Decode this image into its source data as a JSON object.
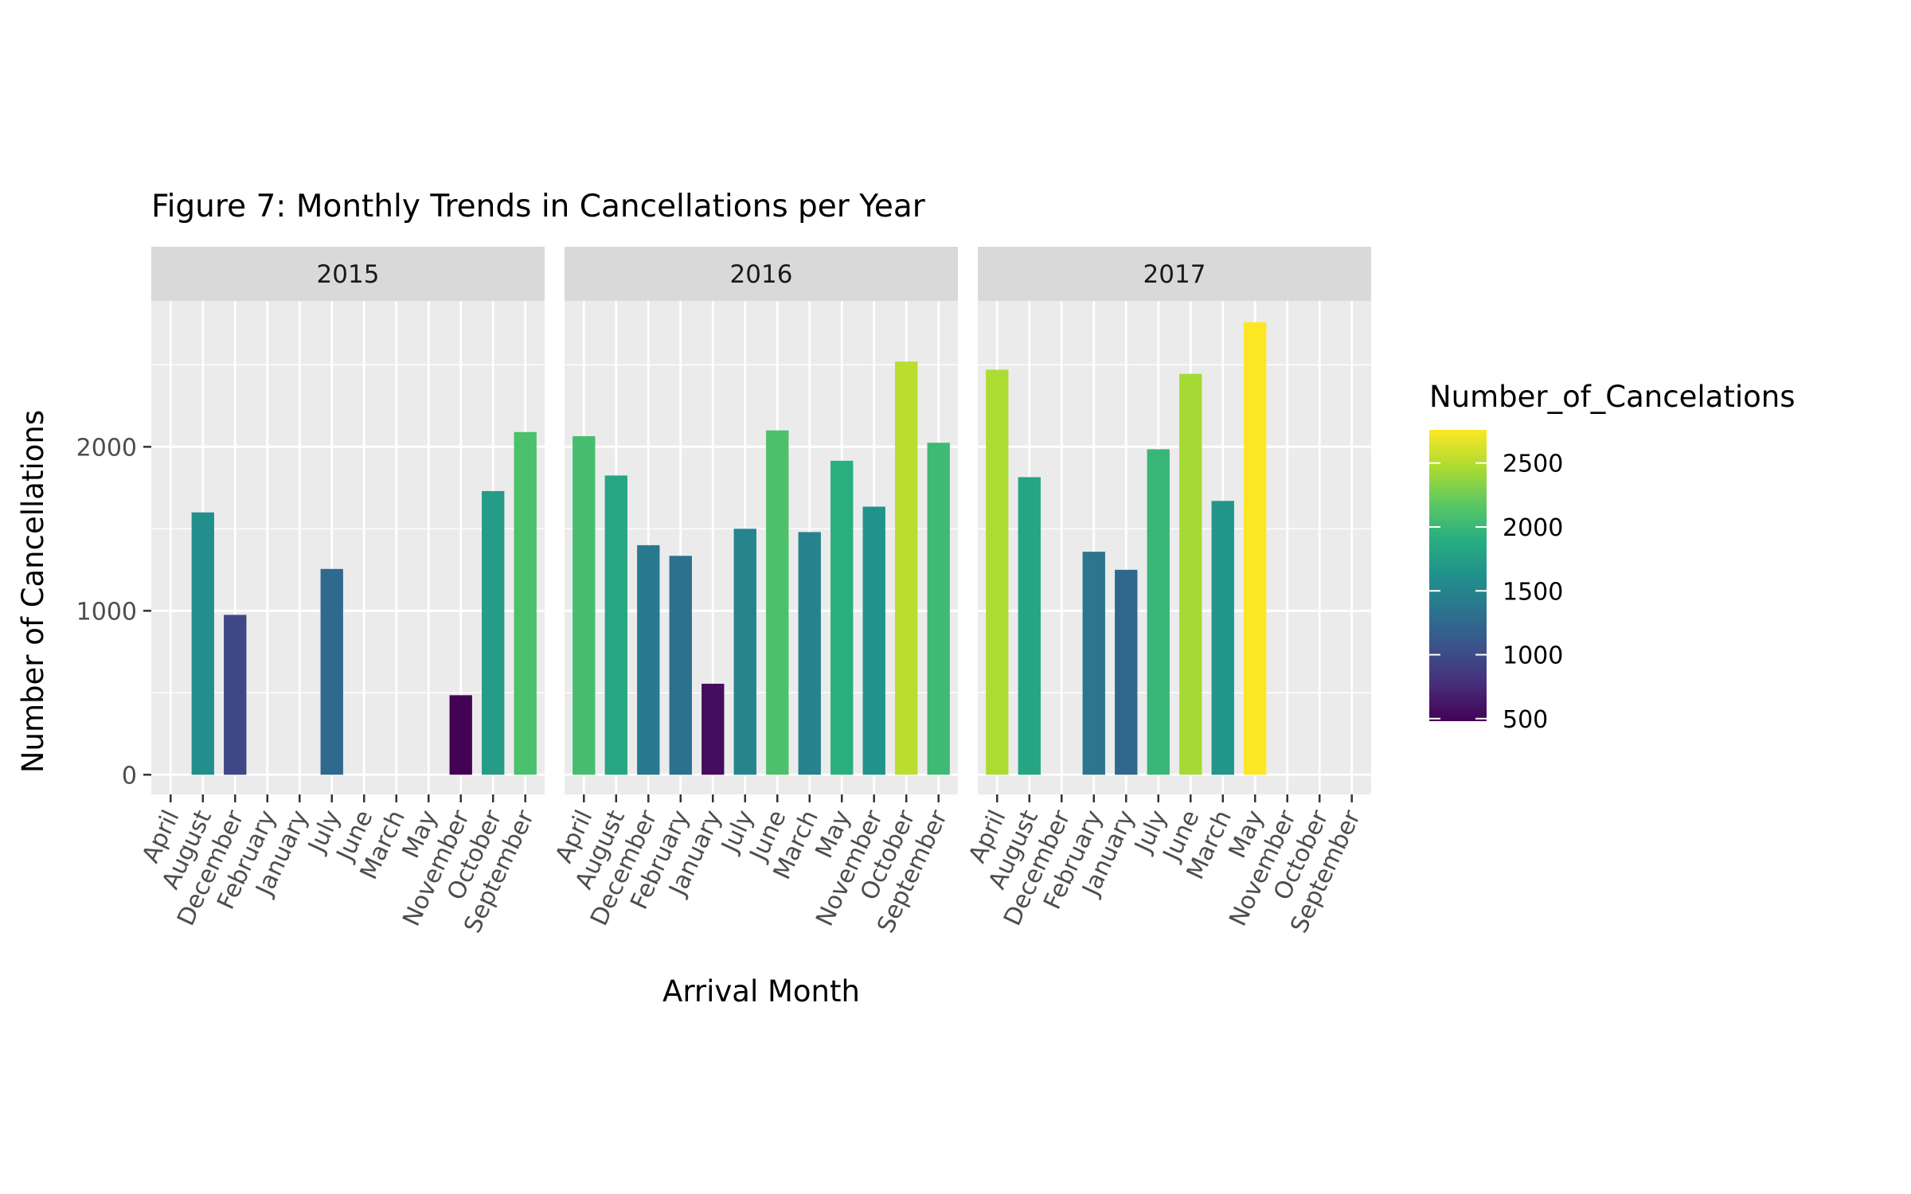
{
  "chart_data": {
    "type": "bar",
    "title": "Figure 7: Monthly Trends in Cancellations per Year",
    "xlabel": "Arrival Month",
    "ylabel": "Number of Cancellations",
    "categories": [
      "April",
      "August",
      "December",
      "February",
      "January",
      "July",
      "June",
      "March",
      "May",
      "November",
      "October",
      "September"
    ],
    "ylim": [
      -120,
      2890
    ],
    "yticks": [
      0,
      1000,
      2000
    ],
    "grid": true,
    "legend": {
      "title": "Number_of_Cancelations",
      "position": "right",
      "ticks": [
        500,
        1000,
        1500,
        2000,
        2500
      ],
      "range": [
        480,
        2760
      ],
      "colormap": "viridis"
    },
    "facets": [
      {
        "label": "2015",
        "values": [
          null,
          1600,
          975,
          null,
          null,
          1255,
          null,
          null,
          null,
          485,
          1730,
          2090
        ]
      },
      {
        "label": "2016",
        "values": [
          2065,
          1825,
          1400,
          1335,
          555,
          1500,
          2100,
          1480,
          1915,
          1635,
          2520,
          2025
        ]
      },
      {
        "label": "2017",
        "values": [
          2470,
          1815,
          null,
          1360,
          1250,
          1985,
          2445,
          1670,
          2760,
          null,
          null,
          null
        ]
      }
    ]
  }
}
